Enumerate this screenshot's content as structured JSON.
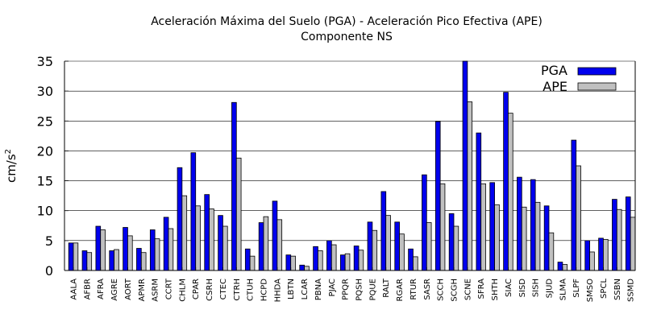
{
  "chart_data": {
    "type": "bar",
    "title": "Aceleración Máxima del Suelo (PGA) -   Aceleración Pico Efectiva (APE)",
    "subtitle": "Componente NS",
    "xlabel": "",
    "ylabel": "cm/s",
    "ylabel_sup": "2",
    "ylim": [
      0,
      35
    ],
    "yticks": [
      0,
      5,
      10,
      15,
      20,
      25,
      30,
      35
    ],
    "grid": true,
    "legend_position": "top-right",
    "colors": {
      "PGA": "#0000ee",
      "APE": "#c0c0c0"
    },
    "categories": [
      "AALA",
      "AFBR",
      "AFRA",
      "AGRE",
      "AORT",
      "APMR",
      "ASRM",
      "CCRT",
      "CHLM",
      "CPAR",
      "CSRH",
      "CTEC",
      "CTRH",
      "CTUH",
      "HCPD",
      "HHDA",
      "LBTN",
      "LCAR",
      "PBNA",
      "PJAC",
      "PPQR",
      "PQSH",
      "PQUE",
      "RALT",
      "RGAR",
      "RTUR",
      "SASR",
      "SCCH",
      "SCGH",
      "SCNE",
      "SFRA",
      "SHTH",
      "SIAC",
      "SISD",
      "SISH",
      "SJUD",
      "SLMA",
      "SLPF",
      "SMSO",
      "SPCL",
      "SSBN",
      "SSMD"
    ],
    "series": [
      {
        "name": "PGA",
        "values": [
          4.6,
          3.3,
          7.4,
          3.3,
          7.2,
          3.7,
          6.8,
          8.9,
          17.2,
          19.7,
          12.7,
          9.2,
          28.1,
          3.6,
          8.0,
          11.6,
          2.6,
          0.9,
          4.0,
          5.0,
          2.6,
          4.1,
          8.1,
          13.2,
          8.1,
          3.6,
          16.0,
          24.9,
          9.5,
          35.0,
          23.0,
          14.7,
          29.8,
          15.6,
          15.2,
          10.8,
          1.4,
          21.8,
          5.0,
          5.4,
          11.9,
          12.3
        ]
      },
      {
        "name": "APE",
        "values": [
          4.6,
          3.0,
          6.8,
          3.5,
          5.8,
          3.0,
          5.3,
          7.0,
          12.5,
          10.8,
          10.3,
          7.4,
          18.8,
          2.4,
          9.0,
          8.5,
          2.4,
          0.7,
          3.3,
          4.3,
          2.8,
          3.4,
          6.7,
          9.2,
          6.1,
          2.3,
          8.0,
          14.5,
          7.4,
          28.2,
          14.5,
          11.0,
          26.3,
          10.6,
          11.4,
          6.3,
          1.0,
          17.5,
          3.1,
          5.2,
          10.2,
          8.9
        ]
      }
    ]
  }
}
